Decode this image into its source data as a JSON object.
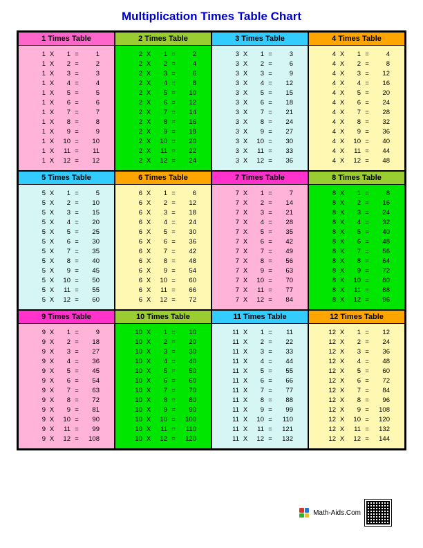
{
  "title": "Multiplication Times Table Chart",
  "title_color": "#0000cc",
  "page_bg": "#ffffff",
  "operator": "X",
  "equals": "=",
  "multiplicands": [
    1,
    2,
    3,
    4,
    5,
    6,
    7,
    8,
    9,
    10,
    11,
    12
  ],
  "tables": [
    {
      "n": 1,
      "label": "1 Times Table",
      "header_bg": "#ff66cc",
      "body_bg": "#ffb3d9"
    },
    {
      "n": 2,
      "label": "2 Times Table",
      "header_bg": "#9acd32",
      "body_bg": "#00e600"
    },
    {
      "n": 3,
      "label": "3 Times Table",
      "header_bg": "#33ccff",
      "body_bg": "#d6f5f5"
    },
    {
      "n": 4,
      "label": "4 Times Table",
      "header_bg": "#ffa500",
      "body_bg": "#fff8b3"
    },
    {
      "n": 5,
      "label": "5 Times Table",
      "header_bg": "#33ccff",
      "body_bg": "#d6f5f5"
    },
    {
      "n": 6,
      "label": "6 Times Table",
      "header_bg": "#ffa500",
      "body_bg": "#fff8b3"
    },
    {
      "n": 7,
      "label": "7 Times Table",
      "header_bg": "#ff33cc",
      "body_bg": "#ffb3d9"
    },
    {
      "n": 8,
      "label": "8 Times Table",
      "header_bg": "#9acd32",
      "body_bg": "#00e600"
    },
    {
      "n": 9,
      "label": "9 Times Table",
      "header_bg": "#ff33cc",
      "body_bg": "#ffb3d9"
    },
    {
      "n": 10,
      "label": "10 Times Table",
      "header_bg": "#9acd32",
      "body_bg": "#00e600"
    },
    {
      "n": 11,
      "label": "11 Times Table",
      "header_bg": "#33ccff",
      "body_bg": "#d6f5f5"
    },
    {
      "n": 12,
      "label": "12 Times Table",
      "header_bg": "#ffa500",
      "body_bg": "#fff8b3"
    }
  ],
  "footer_text": "Math-Aids.Com",
  "footer_logo_colors": [
    "#d4342a",
    "#2a72d4",
    "#2ab52a",
    "#e8c22a"
  ],
  "fontsize_title": 17,
  "fontsize_header": 11,
  "fontsize_row": 9.5,
  "border_color": "#000000"
}
